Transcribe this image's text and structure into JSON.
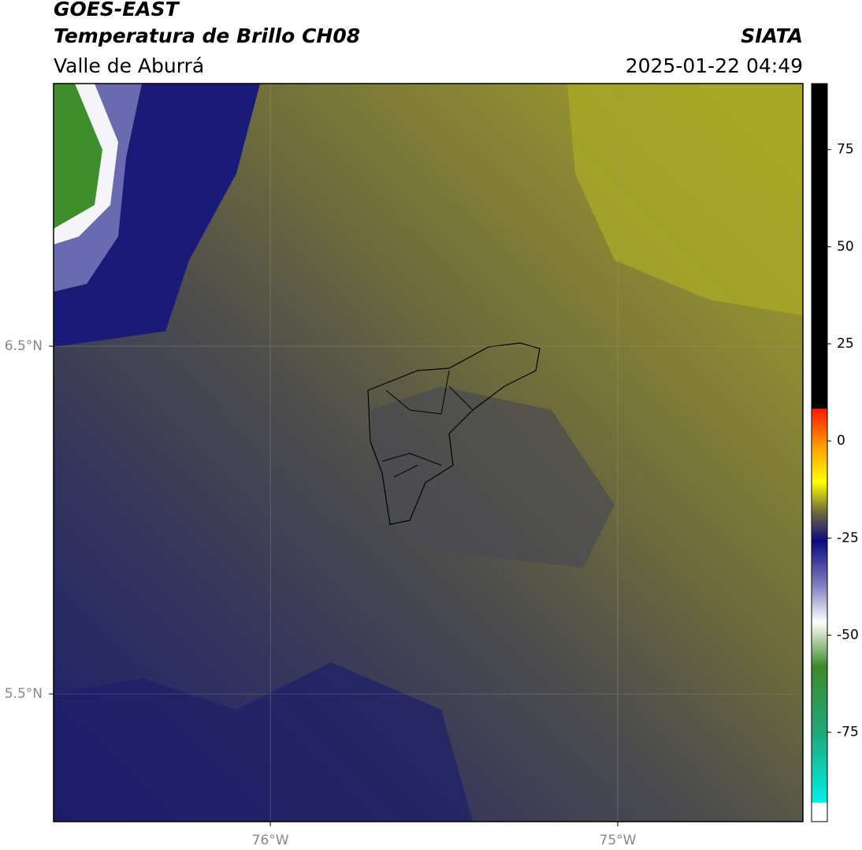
{
  "header": {
    "title": "GOES-EAST",
    "subtitle": "Temperatura de Brillo CH08",
    "region": "Valle de Aburrá",
    "source": "SIATA",
    "datetime": "2025-01-22 04:49"
  },
  "map": {
    "lonlim": [
      -76.624,
      -74.467
    ],
    "latlim": [
      5.133,
      7.255
    ],
    "xticks": [
      {
        "value": -76,
        "label": "76°W"
      },
      {
        "value": -75,
        "label": "75°W"
      }
    ],
    "yticks": [
      {
        "value": 6.5,
        "label": "6.5°N"
      },
      {
        "value": 5.5,
        "label": "5.5°N"
      }
    ],
    "grid": true,
    "colorbar": {
      "lim": [
        -98,
        92
      ],
      "ticks": [
        75,
        50,
        25,
        0,
        -25,
        -50,
        -75
      ]
    }
  }
}
